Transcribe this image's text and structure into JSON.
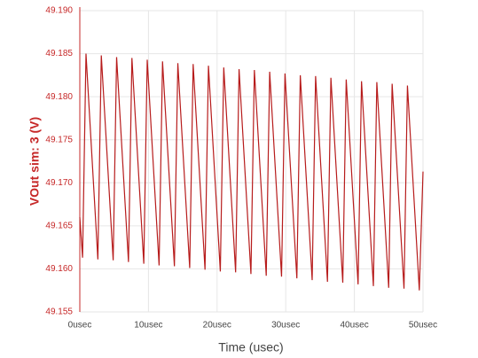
{
  "chart_data": {
    "type": "line",
    "xlabel": "Time (usec)",
    "ylabel": "VOut sim: 3 (V)",
    "color": "#b71c1c",
    "grid": true,
    "xlim": [
      0,
      50
    ],
    "ylim": [
      49.155,
      49.19
    ],
    "xticks": [
      {
        "value": 0,
        "label": "0usec"
      },
      {
        "value": 10,
        "label": "10usec"
      },
      {
        "value": 20,
        "label": "20usec"
      },
      {
        "value": 30,
        "label": "30usec"
      },
      {
        "value": 40,
        "label": "40usec"
      },
      {
        "value": 50,
        "label": "50usec"
      }
    ],
    "yticks": [
      49.155,
      {
        "value": 49.16,
        "label": "49.160"
      },
      49.165,
      {
        "value": 49.17,
        "label": "49.170"
      },
      49.175,
      {
        "value": 49.18,
        "label": "49.180"
      },
      49.185,
      {
        "value": 49.19,
        "label": "49.190"
      }
    ],
    "x": [
      0,
      0.4,
      0.9,
      2.63,
      3.13,
      4.86,
      5.36,
      7.09,
      7.59,
      9.32,
      9.82,
      11.55,
      12.05,
      13.78,
      14.28,
      16.01,
      16.51,
      18.24,
      18.74,
      20.47,
      20.97,
      22.7,
      23.2,
      24.93,
      25.43,
      27.16,
      27.66,
      29.39,
      29.89,
      31.62,
      32.12,
      33.85,
      34.35,
      36.08,
      36.58,
      38.31,
      38.81,
      40.54,
      41.04,
      42.77,
      43.27,
      45.0,
      45.5,
      47.23,
      47.73,
      49.46,
      50
    ],
    "values": [
      49.166,
      49.1613,
      49.185,
      49.1611,
      49.1848,
      49.161,
      49.1846,
      49.1608,
      49.1845,
      49.1606,
      49.1843,
      49.1604,
      49.1841,
      49.1603,
      49.1839,
      49.1601,
      49.1838,
      49.1599,
      49.1836,
      49.1597,
      49.1834,
      49.1596,
      49.1832,
      49.1594,
      49.1831,
      49.1592,
      49.1829,
      49.1591,
      49.1827,
      49.1589,
      49.1825,
      49.1587,
      49.1824,
      49.1585,
      49.1822,
      49.1584,
      49.182,
      49.1582,
      49.1818,
      49.158,
      49.1817,
      49.1578,
      49.1815,
      49.1577,
      49.1813,
      49.1575,
      49.1713
    ]
  }
}
